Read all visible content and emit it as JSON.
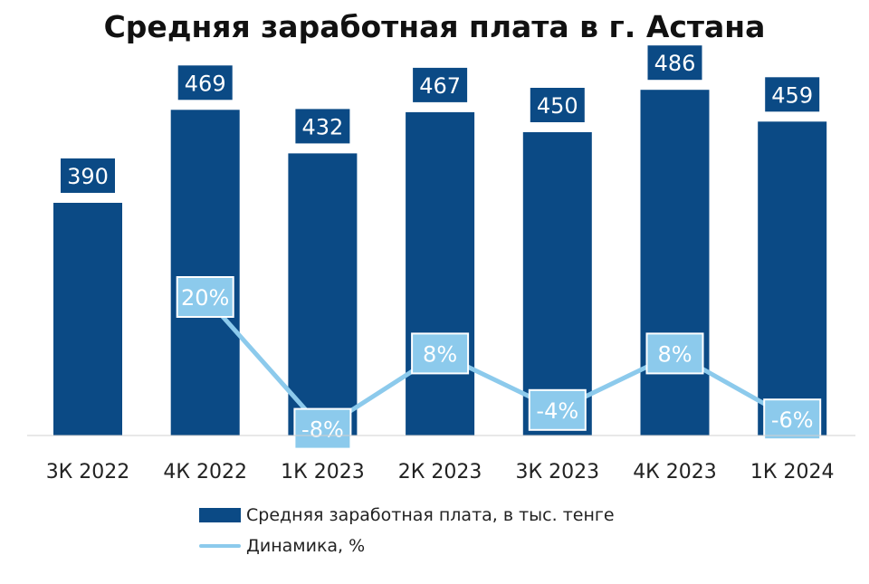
{
  "chart_data": {
    "type": "bar",
    "title": "Средняя заработная плата в г. Астана",
    "categories": [
      "3К 2022",
      "4К 2022",
      "1К 2023",
      "2К 2023",
      "3К 2023",
      "4К 2023",
      "1К 2024"
    ],
    "series": [
      {
        "name": "Средняя заработная плата, в тыс. тенге",
        "type": "bar",
        "values": [
          390,
          469,
          432,
          467,
          450,
          486,
          459
        ],
        "labels": [
          "390",
          "469",
          "432",
          "467",
          "450",
          "486",
          "459"
        ],
        "color": "#0b4a85"
      },
      {
        "name": "Динамика, %",
        "type": "line",
        "values": [
          null,
          20,
          -8,
          8,
          -4,
          8,
          -6
        ],
        "labels": [
          null,
          "20%",
          "-8%",
          "8%",
          "-4%",
          "8%",
          "-6%"
        ],
        "color": "#8ccaec"
      }
    ],
    "grid": false,
    "legend": "bottom-center"
  }
}
